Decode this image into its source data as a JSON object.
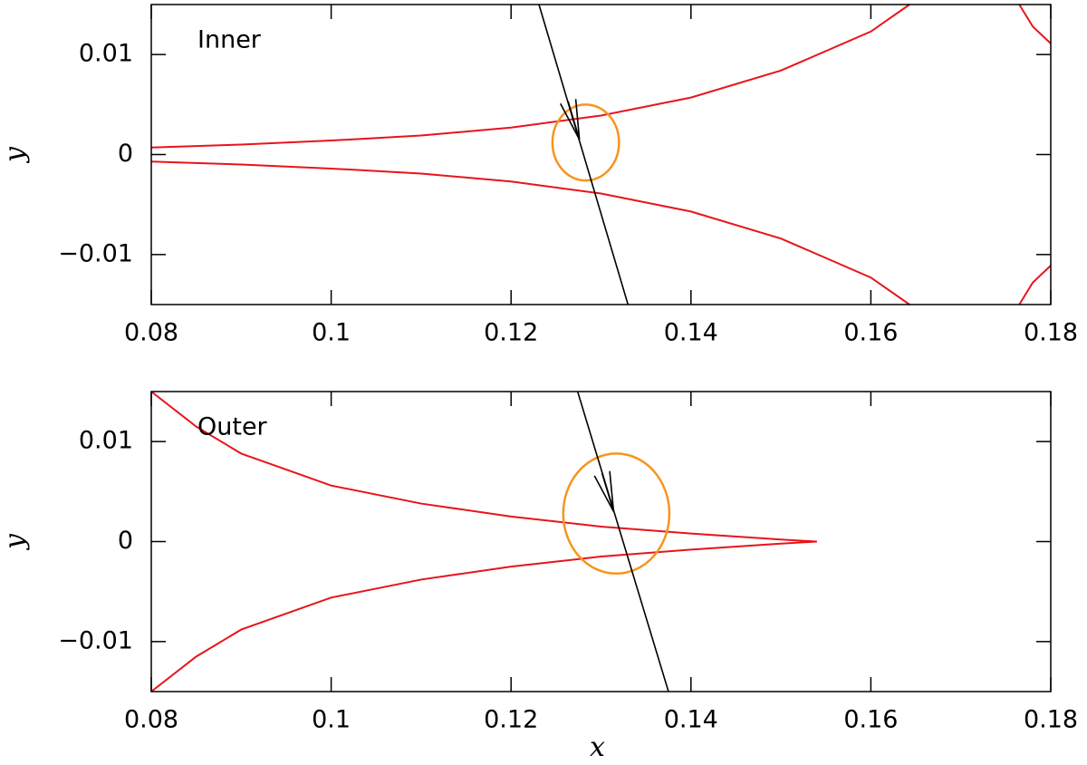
{
  "chart_data": [
    {
      "type": "line",
      "annotation": "Inner",
      "y_label": "y",
      "xlim": [
        0.08,
        0.18
      ],
      "ylim": [
        -0.015,
        0.015
      ],
      "xticks": [
        0.08,
        0.1,
        0.12,
        0.14,
        0.16,
        0.18
      ],
      "yticks": [
        {
          "value": -0.01,
          "label": "−0.01"
        },
        0,
        0.01
      ],
      "series": [
        {
          "color": "#e8141b",
          "x": [
            0.08,
            0.09,
            0.1,
            0.11,
            0.12,
            0.13,
            0.14,
            0.15,
            0.16,
            0.1643
          ],
          "y": [
            0.0007,
            0.001,
            0.0014,
            0.0019,
            0.0027,
            0.0039,
            0.0057,
            0.0084,
            0.0123,
            0.015
          ]
        },
        {
          "color": "#e8141b",
          "x": [
            0.08,
            0.09,
            0.1,
            0.11,
            0.12,
            0.13,
            0.14,
            0.15,
            0.16,
            0.1643
          ],
          "y": [
            -0.0007,
            -0.001,
            -0.0014,
            -0.0019,
            -0.0027,
            -0.0039,
            -0.0057,
            -0.0084,
            -0.0123,
            -0.015
          ]
        },
        {
          "color": "#e8141b",
          "x": [
            0.1765,
            0.178,
            0.18
          ],
          "y": [
            0.015,
            0.0128,
            0.0111
          ]
        },
        {
          "color": "#e8141b",
          "x": [
            0.1765,
            0.178,
            0.18
          ],
          "y": [
            -0.015,
            -0.0128,
            -0.0111
          ]
        }
      ],
      "trajectory": {
        "color": "#000000",
        "x": [
          0.1231,
          0.133
        ],
        "y": [
          0.015,
          -0.015
        ],
        "arrow_at": [
          0.1276,
          0.0015
        ]
      },
      "source": {
        "color": "#f7941d",
        "x": 0.1283,
        "y": 0.0012,
        "rx": 0.0037,
        "ry": 0.0038
      }
    },
    {
      "type": "line",
      "annotation": "Outer",
      "y_label": "y",
      "x_label": "x",
      "xlim": [
        0.08,
        0.18
      ],
      "ylim": [
        -0.015,
        0.015
      ],
      "xticks": [
        0.08,
        0.1,
        0.12,
        0.14,
        0.16,
        0.18
      ],
      "yticks": [
        {
          "value": -0.01,
          "label": "−0.01"
        },
        0,
        0.01
      ],
      "series": [
        {
          "color": "#e8141b",
          "x": [
            0.08,
            0.085,
            0.09,
            0.1,
            0.11,
            0.12,
            0.13,
            0.14,
            0.15,
            0.154
          ],
          "y": [
            0.015,
            0.0115,
            0.0088,
            0.0056,
            0.0038,
            0.0025,
            0.0015,
            0.0008,
            0.0002,
            0
          ]
        },
        {
          "color": "#e8141b",
          "x": [
            0.08,
            0.085,
            0.09,
            0.1,
            0.11,
            0.12,
            0.13,
            0.14,
            0.15,
            0.154
          ],
          "y": [
            -0.015,
            -0.0115,
            -0.0088,
            -0.0056,
            -0.0038,
            -0.0025,
            -0.0015,
            -0.0008,
            -0.0002,
            0
          ]
        }
      ],
      "trajectory": {
        "color": "#000000",
        "x": [
          0.1274,
          0.1375
        ],
        "y": [
          0.015,
          -0.015
        ],
        "arrow_at": [
          0.1314,
          0.003
        ]
      },
      "source": {
        "color": "#f7941d",
        "x": 0.1317,
        "y": 0.0028,
        "rx": 0.0059,
        "ry": 0.006
      }
    }
  ]
}
